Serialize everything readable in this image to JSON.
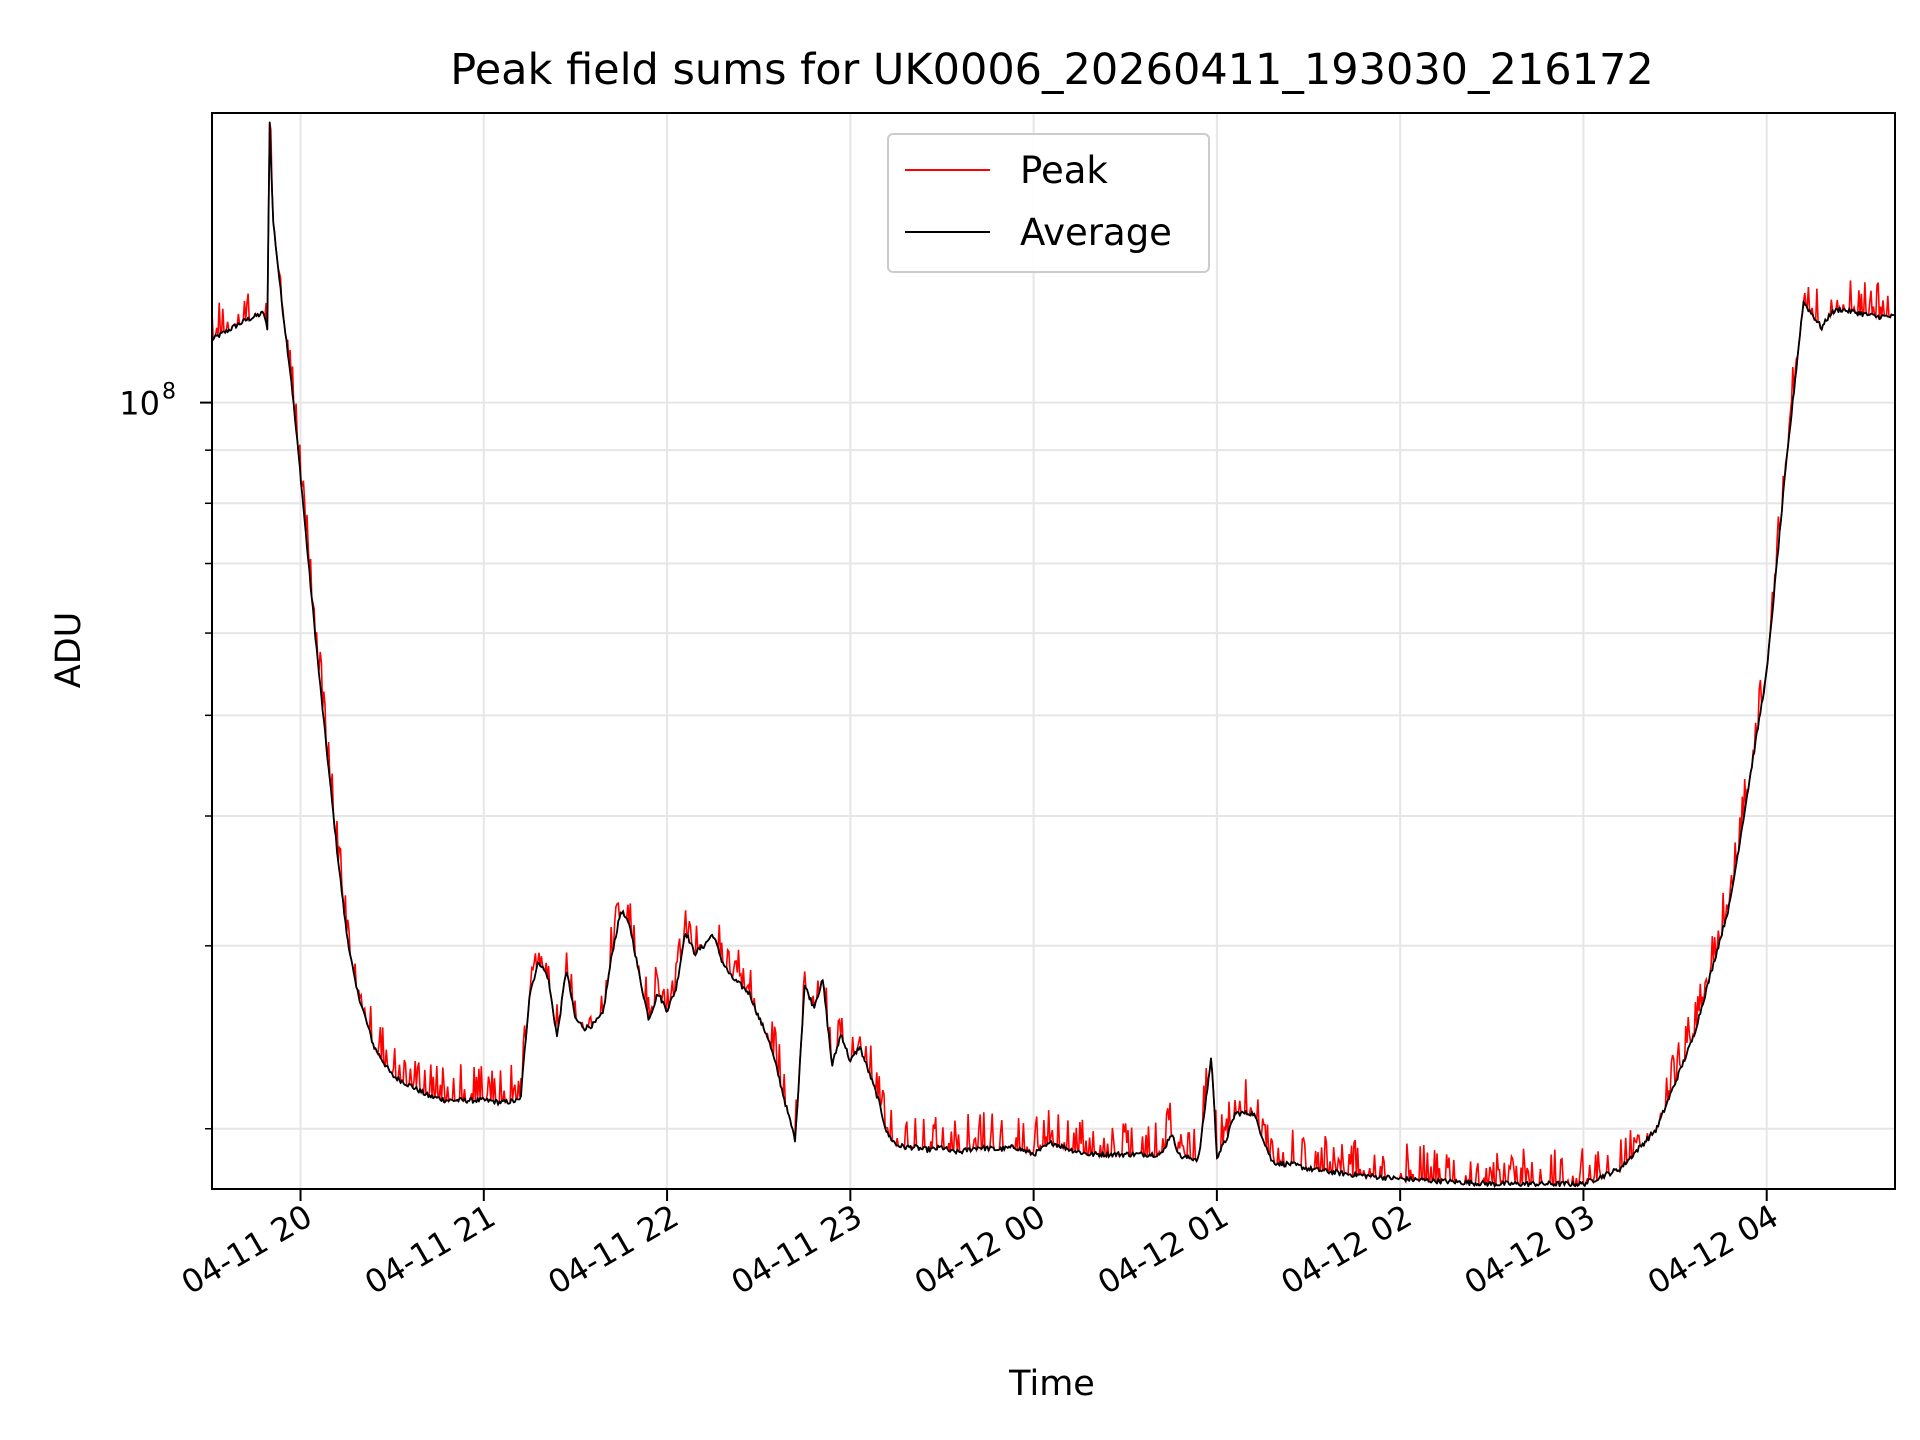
{
  "chart_data": {
    "type": "line",
    "title": "Peak field sums for UK0006_20260411_193030_216172",
    "xlabel": "Time",
    "ylabel": "ADU",
    "yscale": "log",
    "ylim": [
      17500000,
      190000000
    ],
    "xlim_hours": [
      -0.483,
      8.7
    ],
    "grid": true,
    "legend_position": "upper center",
    "x_ticks": [
      {
        "label": "04-11 20",
        "hour": 0
      },
      {
        "label": "04-11 21",
        "hour": 1
      },
      {
        "label": "04-11 22",
        "hour": 2
      },
      {
        "label": "04-11 23",
        "hour": 3
      },
      {
        "label": "04-12 00",
        "hour": 4
      },
      {
        "label": "04-12 01",
        "hour": 5
      },
      {
        "label": "04-12 02",
        "hour": 6
      },
      {
        "label": "04-12 03",
        "hour": 7
      },
      {
        "label": "04-12 04",
        "hour": 8
      }
    ],
    "y_major_ticks": [
      {
        "base": "10",
        "exponent": "8",
        "value": 100000000
      }
    ],
    "y_minor_ticks": [
      20000000,
      30000000,
      40000000,
      50000000,
      60000000,
      70000000,
      80000000,
      90000000
    ],
    "series": [
      {
        "name": "Peak",
        "color": "#ff0000",
        "spike_max_frac": 0.08
      },
      {
        "name": "Average",
        "color": "#000000",
        "hours": [
          -0.483,
          -0.3,
          -0.2,
          -0.18,
          -0.17,
          -0.15,
          -0.1,
          -0.05,
          0,
          0.05,
          0.1,
          0.15,
          0.2,
          0.25,
          0.3,
          0.4,
          0.5,
          0.6,
          0.7,
          0.8,
          0.9,
          1.0,
          1.1,
          1.2,
          1.25,
          1.3,
          1.35,
          1.4,
          1.45,
          1.5,
          1.55,
          1.6,
          1.65,
          1.7,
          1.75,
          1.8,
          1.85,
          1.9,
          1.95,
          2.0,
          2.05,
          2.1,
          2.15,
          2.2,
          2.25,
          2.3,
          2.35,
          2.4,
          2.45,
          2.5,
          2.55,
          2.6,
          2.65,
          2.7,
          2.75,
          2.8,
          2.85,
          2.9,
          2.95,
          3.0,
          3.05,
          3.1,
          3.15,
          3.2,
          3.25,
          3.3,
          3.35,
          3.4,
          3.45,
          3.5,
          3.55,
          3.6,
          3.7,
          3.8,
          3.9,
          4.0,
          4.1,
          4.2,
          4.3,
          4.5,
          4.7,
          4.75,
          4.8,
          4.9,
          4.97,
          5.0,
          5.05,
          5.1,
          5.2,
          5.3,
          5.35,
          5.4,
          5.5,
          5.7,
          6.0,
          6.5,
          7.0,
          7.2,
          7.4,
          7.6,
          7.8,
          8.0,
          8.1,
          8.2,
          8.3,
          8.35,
          8.4,
          8.6,
          8.7
        ],
        "values": [
          115000000,
          120000000,
          122000000,
          117000000,
          190000000,
          150000000,
          124000000,
          105000000,
          85000000,
          68000000,
          55000000,
          45000000,
          37000000,
          31000000,
          27500000,
          24000000,
          22500000,
          22000000,
          21500000,
          21300000,
          21300000,
          21300000,
          21200000,
          21300000,
          27000000,
          29000000,
          28000000,
          24500000,
          28500000,
          25500000,
          25000000,
          25200000,
          25800000,
          29500000,
          32500000,
          31200000,
          28000000,
          25500000,
          27000000,
          26000000,
          27300000,
          31000000,
          29500000,
          30000000,
          30800000,
          29000000,
          28000000,
          27500000,
          27000000,
          25600000,
          24500000,
          22800000,
          21000000,
          19500000,
          27500000,
          26200000,
          27800000,
          23000000,
          24700000,
          23200000,
          24000000,
          22700000,
          21400000,
          19800000,
          19300000,
          19200000,
          19200000,
          19100000,
          19100000,
          19200000,
          19000000,
          19000000,
          19200000,
          19100000,
          19200000,
          18900000,
          19400000,
          19100000,
          18900000,
          18900000,
          18900000,
          19800000,
          18800000,
          18700000,
          23500000,
          18800000,
          19500000,
          20700000,
          20700000,
          18600000,
          18500000,
          18500000,
          18300000,
          18100000,
          17900000,
          17700000,
          17700000,
          18300000,
          20000000,
          24500000,
          33000000,
          55000000,
          85000000,
          125000000,
          118000000,
          122000000,
          123000000,
          121000000,
          121000000
        ]
      }
    ]
  }
}
